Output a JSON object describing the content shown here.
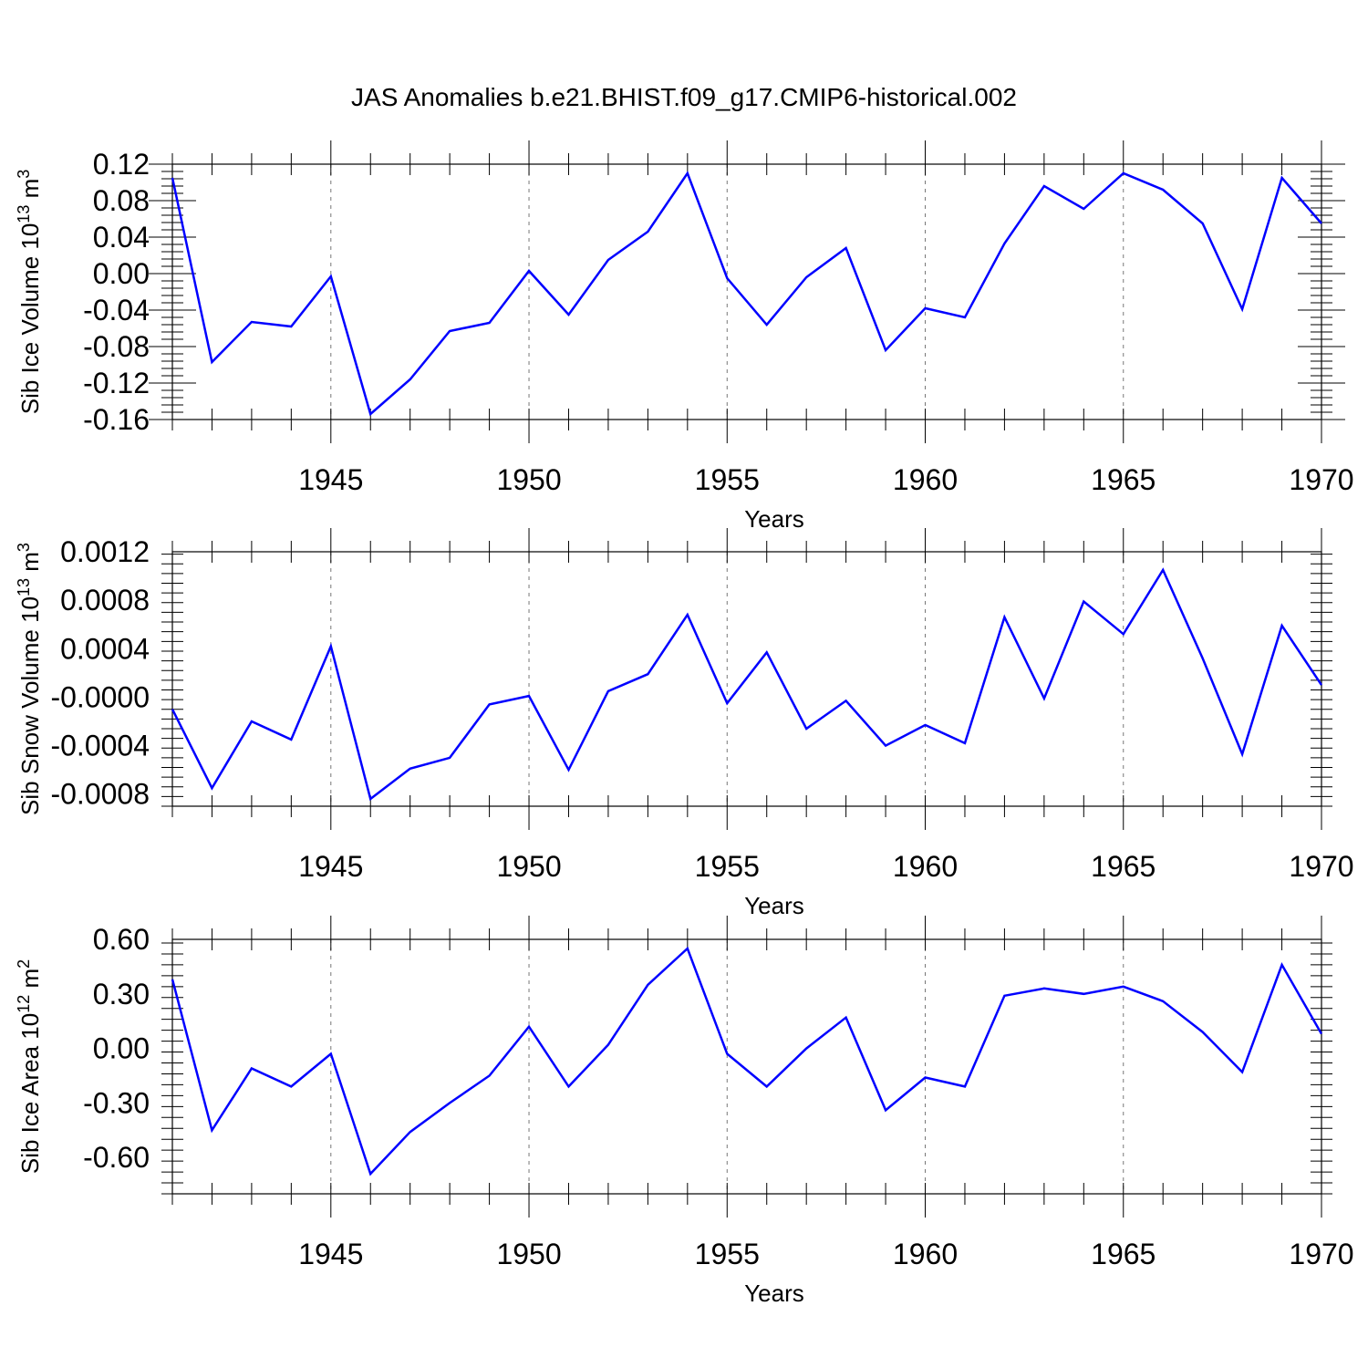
{
  "title": "JAS Anomalies b.e21.BHIST.f09_g17.CMIP6-historical.002",
  "colors": {
    "series": "#0000ff",
    "axis": "#000000",
    "grid": "#777777"
  },
  "chart_data": [
    {
      "type": "line",
      "ylabel": {
        "text": "Sib Ice Volume 10",
        "sup": "13",
        "unit": " m",
        "unit_sup": "3"
      },
      "xlabel": "Years",
      "xlim": [
        1941,
        1970
      ],
      "ylim": [
        -0.16,
        0.12
      ],
      "x_tick_values": [
        1945,
        1950,
        1955,
        1960,
        1965,
        1970
      ],
      "x_tick_labels": [
        "1945",
        "1950",
        "1955",
        "1960",
        "1965",
        "1970"
      ],
      "y_tick_values": [
        0.12,
        0.08,
        0.04,
        0.0,
        -0.04,
        -0.08,
        -0.12,
        -0.16
      ],
      "y_tick_labels": [
        "0.12",
        "0.08",
        "0.04",
        "0.00",
        "-0.04",
        "-0.08",
        "-0.12",
        "-0.16"
      ],
      "grid": "vertical dashed at major x ticks",
      "series": [
        {
          "name": "Sib Ice Volume",
          "x": [
            1941,
            1942,
            1943,
            1944,
            1945,
            1946,
            1947,
            1948,
            1949,
            1950,
            1951,
            1952,
            1953,
            1954,
            1955,
            1956,
            1957,
            1958,
            1959,
            1960,
            1961,
            1962,
            1963,
            1964,
            1965,
            1966,
            1967,
            1968,
            1969,
            1970
          ],
          "values": [
            0.105,
            -0.097,
            -0.053,
            -0.058,
            -0.003,
            -0.154,
            -0.116,
            -0.063,
            -0.054,
            0.003,
            -0.045,
            0.015,
            0.046,
            0.11,
            -0.005,
            -0.056,
            -0.004,
            0.028,
            -0.084,
            -0.038,
            -0.048,
            0.033,
            0.096,
            0.071,
            0.11,
            0.092,
            0.055,
            -0.039,
            0.105,
            0.055
          ]
        }
      ]
    },
    {
      "type": "line",
      "ylabel": {
        "text": "Sib Snow Volume 10",
        "sup": "13",
        "unit": " m",
        "unit_sup": "3"
      },
      "xlabel": "Years",
      "xlim": [
        1941,
        1970
      ],
      "ylim": [
        -0.0009,
        0.0012
      ],
      "x_tick_values": [
        1945,
        1950,
        1955,
        1960,
        1965,
        1970
      ],
      "x_tick_labels": [
        "1945",
        "1950",
        "1955",
        "1960",
        "1965",
        "1970"
      ],
      "y_tick_values": [
        0.0012,
        0.0008,
        0.0004,
        0.0,
        -0.0004,
        -0.0008
      ],
      "y_tick_labels": [
        "0.0012",
        "0.0008",
        "0.0004",
        "-0.0000",
        "-0.0004",
        "-0.0008"
      ],
      "grid": "vertical dashed at major x ticks",
      "series": [
        {
          "name": "Sib Snow Volume",
          "x": [
            1941,
            1942,
            1943,
            1944,
            1945,
            1946,
            1947,
            1948,
            1949,
            1950,
            1951,
            1952,
            1953,
            1954,
            1955,
            1956,
            1957,
            1958,
            1959,
            1960,
            1961,
            1962,
            1963,
            1964,
            1965,
            1966,
            1967,
            1968,
            1969,
            1970
          ],
          "values": [
            -0.0001,
            -0.00075,
            -0.0002,
            -0.00035,
            0.00042,
            -0.00084,
            -0.00059,
            -0.0005,
            -6e-05,
            1e-05,
            -0.0006,
            5e-05,
            0.00019,
            0.00068,
            -5e-05,
            0.00037,
            -0.00026,
            -3e-05,
            -0.0004,
            -0.00023,
            -0.00038,
            0.00066,
            -1e-05,
            0.00079,
            0.00052,
            0.00105,
            0.00032,
            -0.00047,
            0.00059,
            0.0001
          ]
        }
      ]
    },
    {
      "type": "line",
      "ylabel": {
        "text": "Sib Ice Area 10",
        "sup": "12",
        "unit": " m",
        "unit_sup": "2"
      },
      "xlabel": "Years",
      "xlim": [
        1941,
        1970
      ],
      "ylim": [
        -0.8,
        0.6
      ],
      "x_tick_values": [
        1945,
        1950,
        1955,
        1960,
        1965,
        1970
      ],
      "x_tick_labels": [
        "1945",
        "1950",
        "1955",
        "1960",
        "1965",
        "1970"
      ],
      "y_tick_values": [
        0.6,
        0.3,
        0.0,
        -0.3,
        -0.6
      ],
      "y_tick_labels": [
        "0.60",
        "0.30",
        "0.00",
        "-0.30",
        "-0.60"
      ],
      "grid": "vertical dashed at major x ticks",
      "series": [
        {
          "name": "Sib Ice Area",
          "x": [
            1941,
            1942,
            1943,
            1944,
            1945,
            1946,
            1947,
            1948,
            1949,
            1950,
            1951,
            1952,
            1953,
            1954,
            1955,
            1956,
            1957,
            1958,
            1959,
            1960,
            1961,
            1962,
            1963,
            1964,
            1965,
            1966,
            1967,
            1968,
            1969,
            1970
          ],
          "values": [
            0.38,
            -0.45,
            -0.11,
            -0.21,
            -0.03,
            -0.69,
            -0.46,
            -0.3,
            -0.15,
            0.12,
            -0.21,
            0.02,
            0.35,
            0.55,
            -0.03,
            -0.21,
            0.0,
            0.17,
            -0.34,
            -0.16,
            -0.21,
            0.29,
            0.33,
            0.3,
            0.34,
            0.26,
            0.09,
            -0.13,
            0.46,
            0.08
          ]
        }
      ]
    }
  ]
}
